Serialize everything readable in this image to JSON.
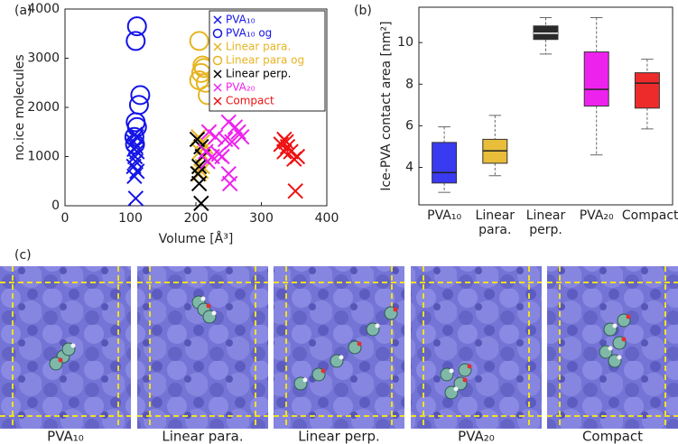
{
  "panel_labels": [
    "(a)",
    "(b)",
    "(c)"
  ],
  "chart_data": [
    {
      "type": "scatter",
      "xlabel": "Volume [Å³]",
      "ylabel": "no.ice molecules",
      "xlim": [
        0,
        400
      ],
      "xticks": [
        0,
        100,
        200,
        300,
        400
      ],
      "ylim": [
        0,
        4000
      ],
      "yticks": [
        0,
        1000,
        2000,
        3000,
        4000
      ],
      "grid": false,
      "legend": "upper right",
      "series": [
        {
          "name": "PVA₁₀",
          "marker": "x",
          "color": "#1414e6",
          "x": [
            108,
            106,
            110,
            105,
            108,
            107,
            110,
            106,
            108,
            105,
            109,
            107
          ],
          "y": [
            150,
            600,
            700,
            800,
            900,
            1000,
            1100,
            1150,
            1200,
            1300,
            1400,
            1450
          ]
        },
        {
          "name": "PVA₁₀ og",
          "marker": "o",
          "color": "#1414e6",
          "x": [
            110,
            108,
            115,
            113,
            108,
            110,
            106,
            107
          ],
          "y": [
            3650,
            3350,
            2250,
            2050,
            1700,
            1600,
            1400,
            1250
          ]
        },
        {
          "name": "Linear para.",
          "marker": "x",
          "color": "#e6b422",
          "x": [
            205,
            208,
            210,
            212,
            206,
            215,
            210,
            204
          ],
          "y": [
            650,
            700,
            800,
            1000,
            1100,
            1200,
            1300,
            1400
          ]
        },
        {
          "name": "Linear para og",
          "marker": "o",
          "color": "#e6b422",
          "x": [
            205,
            210,
            212,
            208,
            205,
            215,
            218
          ],
          "y": [
            3350,
            2850,
            2800,
            2700,
            2550,
            2500,
            2250
          ]
        },
        {
          "name": "Linear perp.",
          "marker": "x",
          "color": "#000000",
          "x": [
            208,
            205,
            203,
            205,
            210,
            208,
            202
          ],
          "y": [
            50,
            450,
            650,
            800,
            1000,
            1200,
            1350
          ]
        },
        {
          "name": "PVA₂₀",
          "marker": "x",
          "color": "#ee22ee",
          "x": [
            220,
            230,
            245,
            250,
            260,
            265,
            270,
            255,
            215,
            225,
            218,
            235,
            240,
            250,
            252
          ],
          "y": [
            1500,
            1400,
            1350,
            1700,
            1600,
            1500,
            1400,
            1300,
            1100,
            1000,
            900,
            1050,
            1000,
            650,
            450
          ]
        },
        {
          "name": "Compact",
          "marker": "x",
          "color": "#ee1111",
          "x": [
            330,
            335,
            338,
            340,
            335,
            345,
            350,
            355,
            352
          ],
          "y": [
            1250,
            1350,
            1300,
            1200,
            1100,
            1100,
            950,
            1000,
            300
          ]
        }
      ]
    },
    {
      "type": "box",
      "ylabel": "Ice-PVA contact area [nm²]",
      "ylim": [
        2.2,
        11.7
      ],
      "yticks": [
        4,
        6,
        8,
        10
      ],
      "grid": false,
      "categories": [
        "PVA₁₀",
        "Linear para.",
        "Linear perp.",
        "PVA₂₀",
        "Compact"
      ],
      "colors": [
        "#3a3af0",
        "#e8bd3a",
        "#2a2a2a",
        "#ee22ee",
        "#ee2b2b"
      ],
      "boxes": [
        {
          "whislo": 2.8,
          "q1": 3.25,
          "med": 3.75,
          "q3": 5.2,
          "whishi": 5.95
        },
        {
          "whislo": 3.6,
          "q1": 4.2,
          "med": 4.8,
          "q3": 5.35,
          "whishi": 6.5
        },
        {
          "whislo": 9.45,
          "q1": 10.15,
          "med": 10.45,
          "q3": 10.8,
          "whishi": 11.2
        },
        {
          "whislo": 4.6,
          "q1": 6.95,
          "med": 7.75,
          "q3": 9.55,
          "whishi": 11.2
        },
        {
          "whislo": 5.85,
          "q1": 6.85,
          "med": 8.05,
          "q3": 8.55,
          "whishi": 9.2
        }
      ]
    }
  ],
  "panel_c": {
    "labels": [
      "PVA₁₀",
      "Linear para.",
      "Linear perp.",
      "PVA₂₀",
      "Compact"
    ]
  }
}
